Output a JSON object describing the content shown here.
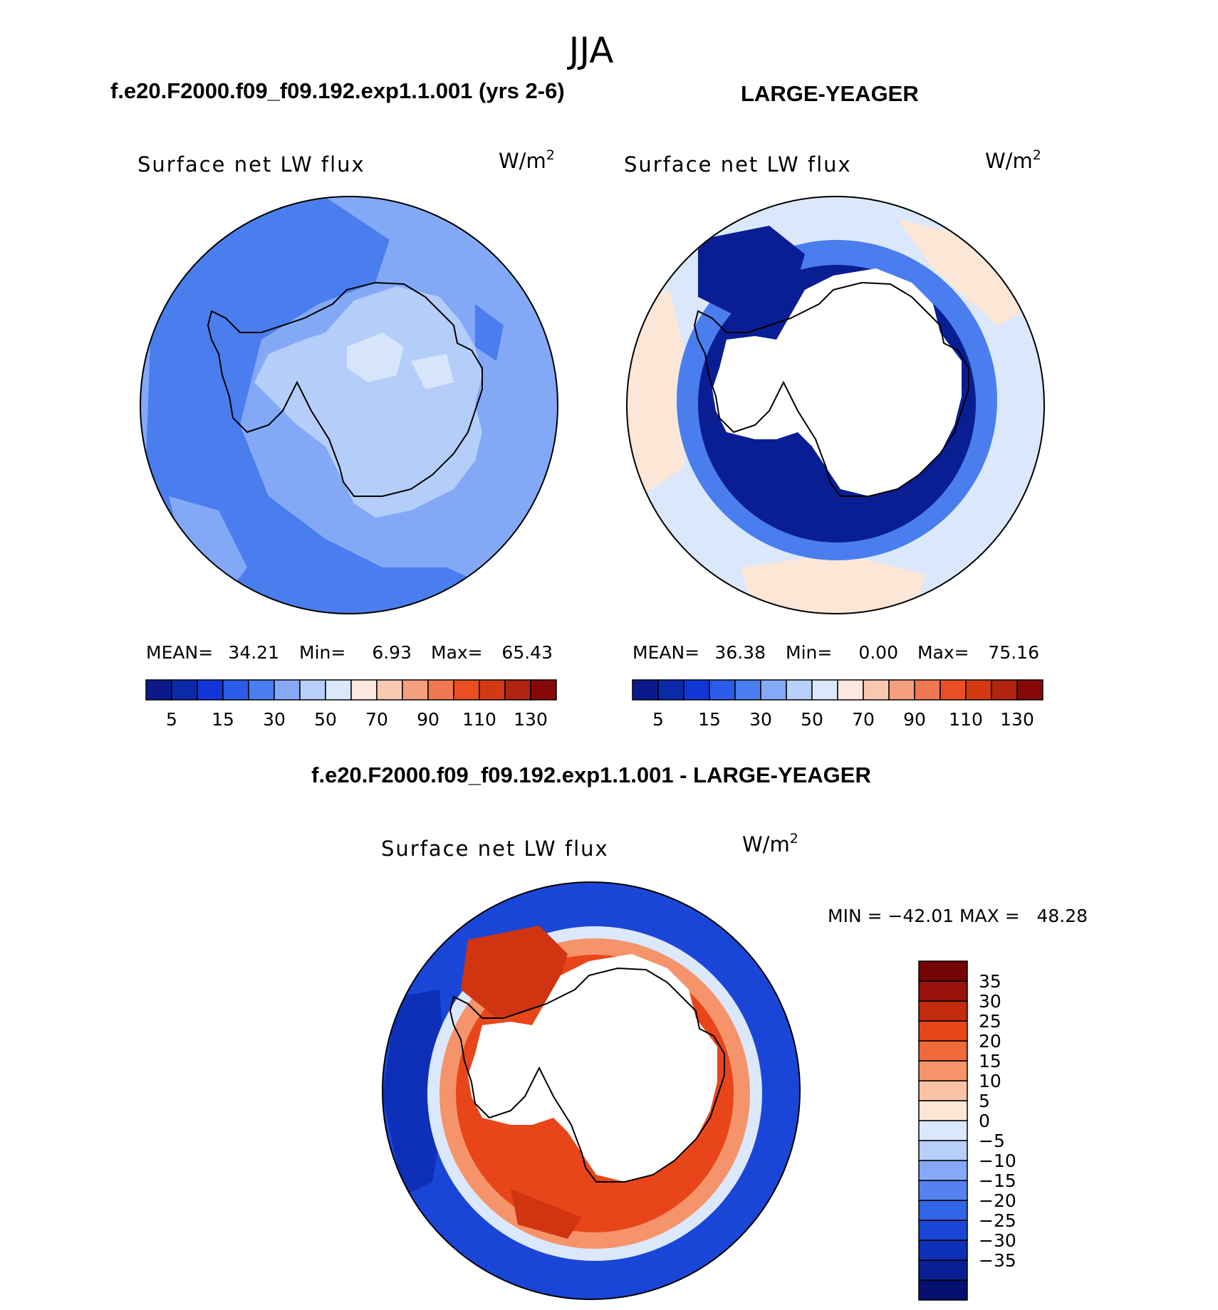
{
  "season": "JJA",
  "panels": {
    "model": {
      "case_title": "f.e20.F2000.f09_f09.192.exp1.1.001 (yrs 2-6)",
      "variable": "Surface net LW flux",
      "units_base": "W/m",
      "units_exp": "2",
      "stats": {
        "mean_label": "MEAN=",
        "mean": "34.21",
        "min_label": "Min=",
        "min": "6.93",
        "max_label": "Max=",
        "max": "65.43"
      }
    },
    "obs": {
      "case_title": "LARGE-YEAGER",
      "variable": "Surface net LW flux",
      "units_base": "W/m",
      "units_exp": "2",
      "stats": {
        "mean_label": "MEAN=",
        "mean": "36.38",
        "min_label": "Min=",
        "min": "0.00",
        "max_label": "Max=",
        "max": "75.16"
      }
    },
    "diff": {
      "case_title": "f.e20.F2000.f09_f09.192.exp1.1.001 - LARGE-YEAGER",
      "variable": "Surface net LW flux",
      "units_base": "W/m",
      "units_exp": "2",
      "range_text": "MIN = −42.01 MAX =   48.28"
    }
  },
  "colorbars": {
    "abs_colors": [
      "#0a1a8c",
      "#0a2aa8",
      "#1036d8",
      "#2a5ce8",
      "#4a7ef0",
      "#86a8f8",
      "#b8cff8",
      "#dbe8fb",
      "#fce8dc",
      "#f9c8b0",
      "#f4a07e",
      "#f07850",
      "#ea4e22",
      "#d43a12",
      "#b02410",
      "#860808"
    ],
    "abs_tick_labels": [
      "5",
      "15",
      "30",
      "50",
      "70",
      "90",
      "110",
      "130"
    ],
    "diff_colors": [
      "#06106e",
      "#0a1e94",
      "#0e30b8",
      "#1a46d8",
      "#3264e6",
      "#5582ee",
      "#86a8f6",
      "#b8cff8",
      "#dbe8fb",
      "#fce6d6",
      "#f9c2a4",
      "#f5946a",
      "#f06a3a",
      "#e8461a",
      "#c42a0c",
      "#96120a",
      "#740404"
    ],
    "diff_tick_labels": [
      "35",
      "30",
      "25",
      "20",
      "15",
      "10",
      "5",
      "0",
      "−5",
      "−10",
      "−15",
      "−20",
      "−25",
      "−30",
      "−35"
    ]
  },
  "map_colors": {
    "model_ocean": "#83a9f6",
    "model_ring": "#4a7eee",
    "model_land": "#b4cdf9",
    "model_land_hi": "#d7e5fb",
    "obs_open": "#dbe8fb",
    "obs_warm": "#fce6d6",
    "obs_mid": "#4a7eee",
    "obs_dark": "#0a1e94",
    "diff_outer": "#1a46d8",
    "diff_outer_dark": "#0e30b8",
    "diff_light": "#dbe8fb",
    "diff_warm": "#f5946a",
    "diff_hot": "#e8461a",
    "diff_hotter": "#d03410"
  }
}
